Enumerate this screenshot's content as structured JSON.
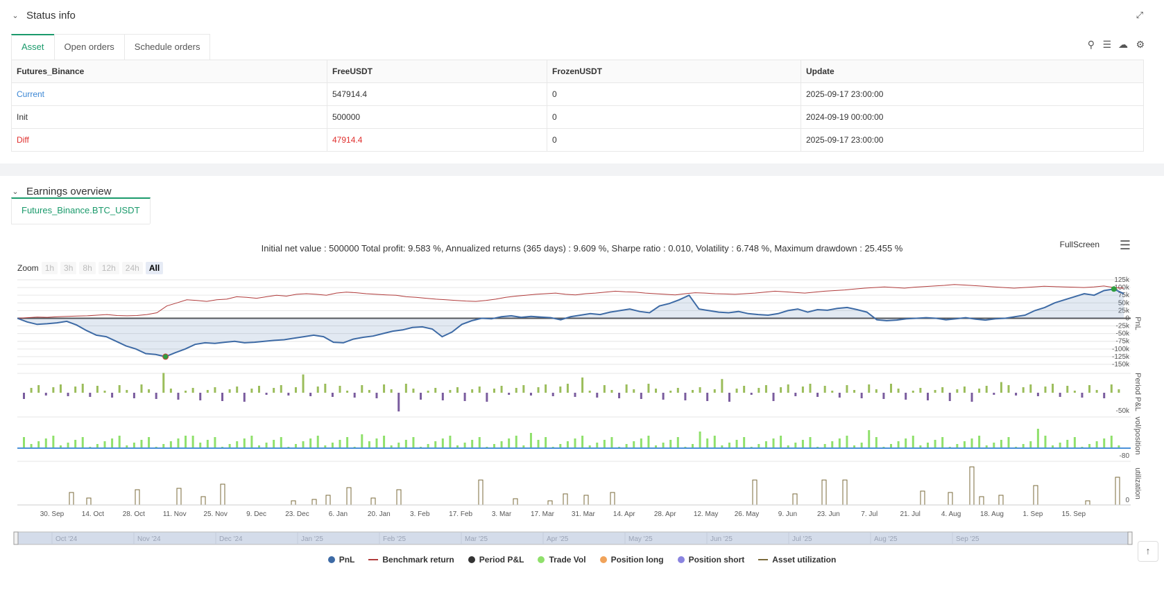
{
  "status": {
    "title": "Status info",
    "tabs": [
      "Asset",
      "Open orders",
      "Schedule orders"
    ],
    "table": {
      "headers": [
        "Futures_Binance",
        "FreeUSDT",
        "FrozenUSDT",
        "Update"
      ],
      "rows": [
        [
          "Current",
          "547914.4",
          "0",
          "2025-09-17 23:00:00"
        ],
        [
          "Init",
          "500000",
          "0",
          "2024-09-19 00:00:00"
        ],
        [
          "Diff",
          "47914.4",
          "0",
          "2025-09-17 23:00:00"
        ]
      ]
    }
  },
  "earnings": {
    "title": "Earnings overview",
    "tab": "Futures_Binance.BTC_USDT",
    "stats": "Initial net value : 500000 Total profit: 9.583 %, Annualized returns (365 days) : 9.609 %, Sharpe ratio : 0.010, Volatility : 6.748 %, Maximum drawdown : 25.455 %",
    "fullscreen": "FullScreen",
    "zoom_label": "Zoom",
    "zoom_buttons": [
      "1h",
      "3h",
      "8h",
      "12h",
      "24h",
      "All"
    ]
  },
  "chart_data": {
    "type": "line",
    "x_tick_labels": [
      "30. Sep",
      "14. Oct",
      "28. Oct",
      "11. Nov",
      "25. Nov",
      "9. Dec",
      "23. Dec",
      "6. Jan",
      "20. Jan",
      "3. Feb",
      "17. Feb",
      "3. Mar",
      "17. Mar",
      "31. Mar",
      "14. Apr",
      "28. Apr",
      "12. May",
      "26. May",
      "9. Jun",
      "23. Jun",
      "7. Jul",
      "21. Jul",
      "4. Aug",
      "18. Aug",
      "1. Sep",
      "15. Sep"
    ],
    "navigator_labels": [
      "Oct '24",
      "Nov '24",
      "Dec '24",
      "Jan '25",
      "Feb '25",
      "Mar '25",
      "Apr '25",
      "May '25",
      "Jun '25",
      "Jul '25",
      "Aug '25",
      "Sep '25"
    ],
    "pnl_axis": {
      "label": "PnL",
      "ticks": [
        "125k",
        "100k",
        "75k",
        "50k",
        "25k",
        "0",
        "-25k",
        "-50k",
        "-75k",
        "-100k",
        "-125k",
        "-150k"
      ],
      "ylim": [
        -150000,
        125000
      ]
    },
    "period_axis": {
      "label": "Period P&L",
      "ticks": [
        "-50k"
      ]
    },
    "vol_axis": {
      "label": "vol/position",
      "ticks": [
        "-80"
      ]
    },
    "util_axis": {
      "label": "utilization",
      "ticks": [
        "0"
      ]
    },
    "legend": [
      "PnL",
      "Benchmark return",
      "Period P&L",
      "Trade Vol",
      "Position long",
      "Position short",
      "Asset utilization"
    ],
    "colors": {
      "pnl": "#3d6aa5",
      "benchmark": "#b03a3a",
      "period_pos": "#9bbd5b",
      "period_neg": "#7a5c9e",
      "trade_vol": "#8fe06b",
      "pos_long": "#f0a35a",
      "pos_short": "#8a84e0",
      "util": "#7a6a3a"
    },
    "pnl_series": [
      0,
      -12000,
      -20000,
      -18000,
      -15000,
      -10000,
      -22000,
      -40000,
      -55000,
      -60000,
      -75000,
      -90000,
      -100000,
      -115000,
      -118000,
      -125000,
      -112000,
      -100000,
      -85000,
      -80000,
      -82000,
      -78000,
      -75000,
      -80000,
      -78000,
      -75000,
      -72000,
      -70000,
      -65000,
      -60000,
      -55000,
      -60000,
      -78000,
      -80000,
      -68000,
      -62000,
      -58000,
      -50000,
      -42000,
      -38000,
      -30000,
      -28000,
      -35000,
      -60000,
      -45000,
      -20000,
      -8000,
      0,
      -2000,
      5000,
      8000,
      3000,
      6000,
      4000,
      2000,
      -5000,
      5000,
      10000,
      15000,
      12000,
      20000,
      25000,
      30000,
      22000,
      18000,
      40000,
      48000,
      60000,
      75000,
      30000,
      25000,
      20000,
      18000,
      22000,
      15000,
      12000,
      10000,
      15000,
      25000,
      30000,
      20000,
      28000,
      26000,
      32000,
      35000,
      28000,
      20000,
      -5000,
      -8000,
      -6000,
      -2000,
      0,
      2000,
      0,
      -5000,
      -2000,
      2000,
      -3000,
      -6000,
      -2000,
      0,
      5000,
      10000,
      25000,
      35000,
      50000,
      60000,
      70000,
      80000,
      75000,
      90000,
      95000,
      80000
    ],
    "benchmark_series": [
      0,
      2000,
      4000,
      3000,
      5000,
      6000,
      7000,
      8000,
      10000,
      12000,
      9000,
      8000,
      9000,
      12000,
      18000,
      40000,
      50000,
      60000,
      58000,
      55000,
      60000,
      62000,
      70000,
      68000,
      65000,
      70000,
      75000,
      72000,
      78000,
      80000,
      78000,
      75000,
      82000,
      85000,
      83000,
      80000,
      78000,
      76000,
      75000,
      70000,
      68000,
      65000,
      62000,
      60000,
      58000,
      56000,
      55000,
      58000,
      62000,
      68000,
      72000,
      75000,
      78000,
      80000,
      82000,
      78000,
      76000,
      80000,
      82000,
      85000,
      88000,
      86000,
      85000,
      82000,
      80000,
      78000,
      76000,
      80000,
      83000,
      82000,
      80000,
      79000,
      78000,
      80000,
      82000,
      85000,
      88000,
      86000,
      84000,
      82000,
      85000,
      88000,
      90000,
      92000,
      95000,
      98000,
      100000,
      102000,
      100000,
      98000,
      101000,
      103000,
      105000,
      107000,
      110000,
      108000,
      106000,
      104000,
      102000,
      100000,
      98000,
      100000,
      102000,
      104000,
      103000,
      102000,
      101000,
      100000,
      102000,
      105000,
      100000,
      98000
    ]
  }
}
